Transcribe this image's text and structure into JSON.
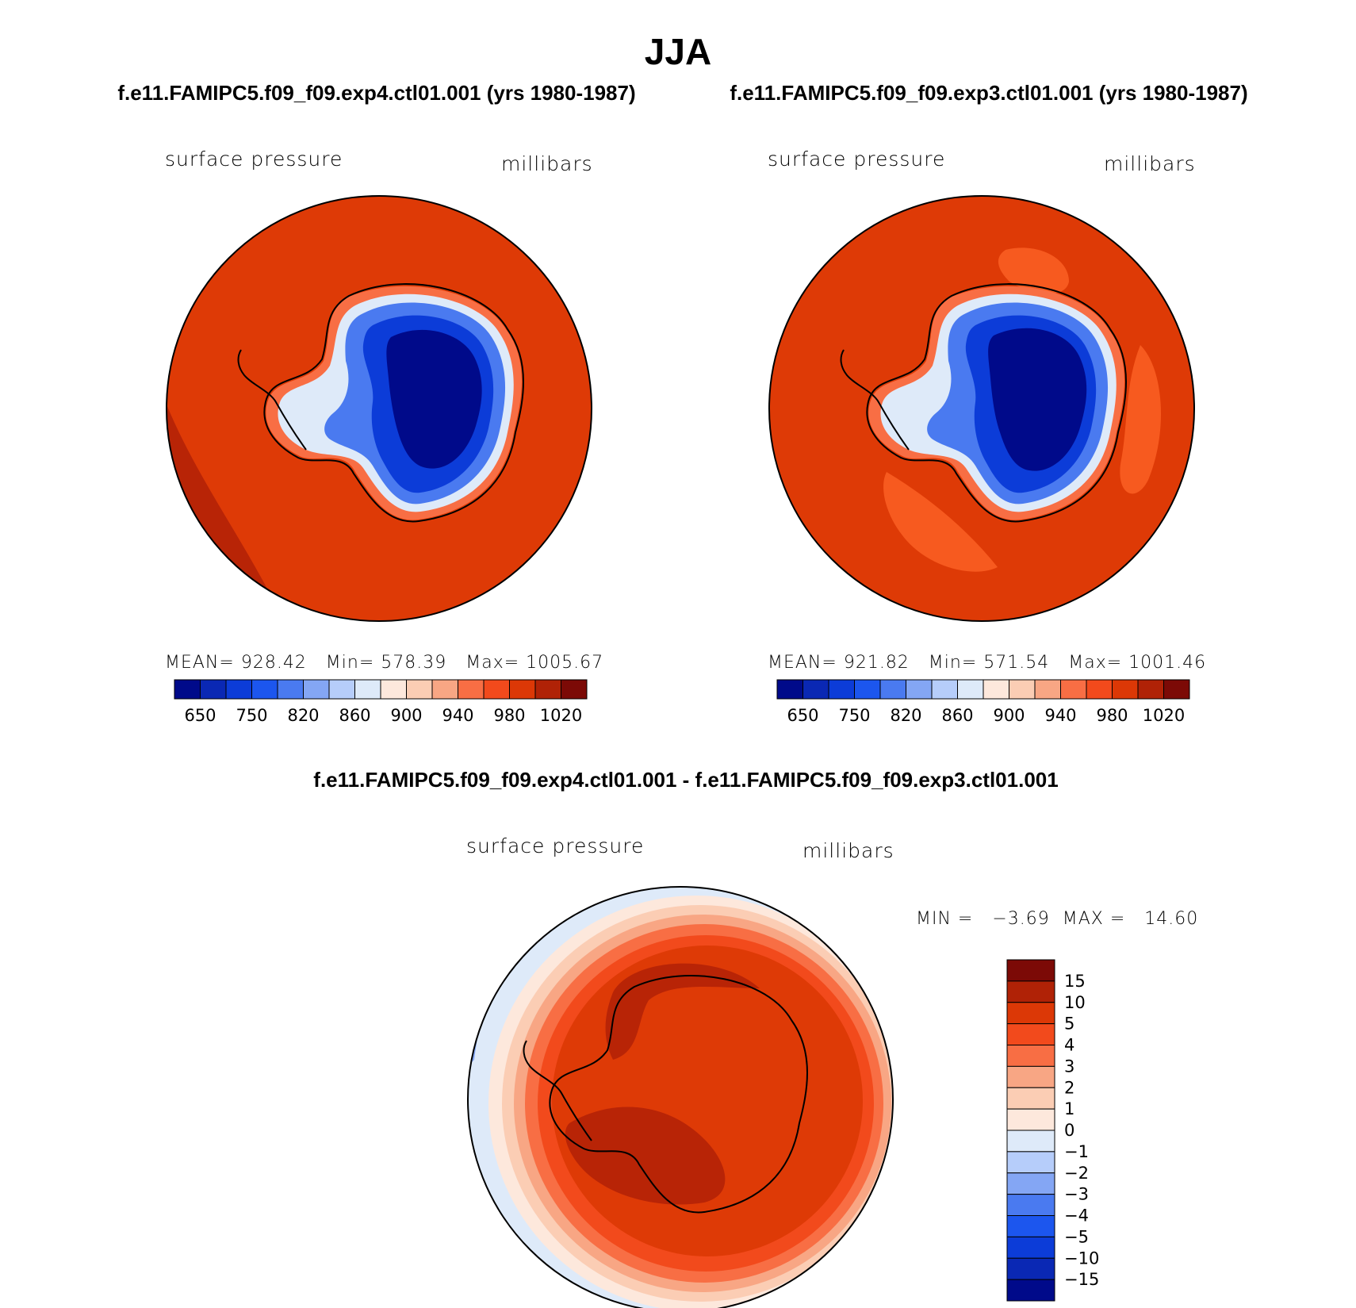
{
  "figure": {
    "season": "JJA",
    "panel_titles": {
      "left": "f.e11.FAMIPC5.f09_f09.exp4.ctl01.001 (yrs 1980-1987)",
      "right": "f.e11.FAMIPC5.f09_f09.exp3.ctl01.001 (yrs 1980-1987)",
      "diff": "f.e11.FAMIPC5.f09_f09.exp4.ctl01.001 - f.e11.FAMIPC5.f09_f09.exp3.ctl01.001"
    }
  },
  "variable": {
    "name": "surface pressure",
    "units": "millibars"
  },
  "panels": {
    "left": {
      "mean_label": "MEAN=",
      "mean": "928.42",
      "min_label": "Min=",
      "min": "578.39",
      "max_label": "Max=",
      "max": "1005.67"
    },
    "right": {
      "mean_label": "MEAN=",
      "mean": "921.82",
      "min_label": "Min=",
      "min": "571.54",
      "max_label": "Max=",
      "max": "1001.46"
    },
    "diff": {
      "min_label": "MIN =",
      "min": "−3.69",
      "max_label": "MAX =",
      "max": "14.60"
    }
  },
  "colors": {
    "field_main": "#de3a06",
    "field_dark": "#b82406",
    "field_light": "#f75a1f",
    "land_coast": "#000000"
  },
  "chart_data": [
    {
      "type": "heatmap",
      "projection": "south polar stereographic",
      "panel": "left",
      "legend": {
        "tick_labels": [
          "650",
          "750",
          "820",
          "860",
          "900",
          "940",
          "980",
          "1020"
        ],
        "colors": [
          "#000a8a",
          "#0a28b4",
          "#0c3cd8",
          "#1c56ee",
          "#4a7af0",
          "#84a6f4",
          "#b6cdfa",
          "#deeaf9",
          "#fde8dc",
          "#fbcdb4",
          "#f8a684",
          "#f86e44",
          "#f24a1c",
          "#dc3806",
          "#b02206",
          "#7c0a06"
        ]
      }
    },
    {
      "type": "heatmap",
      "projection": "south polar stereographic",
      "panel": "right",
      "legend": {
        "tick_labels": [
          "650",
          "750",
          "820",
          "860",
          "900",
          "940",
          "980",
          "1020"
        ],
        "colors": [
          "#000a8a",
          "#0a28b4",
          "#0c3cd8",
          "#1c56ee",
          "#4a7af0",
          "#84a6f4",
          "#b6cdfa",
          "#deeaf9",
          "#fde8dc",
          "#fbcdb4",
          "#f8a684",
          "#f86e44",
          "#f24a1c",
          "#dc3806",
          "#b02206",
          "#7c0a06"
        ]
      }
    },
    {
      "type": "heatmap",
      "projection": "south polar stereographic",
      "panel": "diff",
      "legend": {
        "tick_labels": [
          "15",
          "10",
          "5",
          "4",
          "3",
          "2",
          "1",
          "0",
          "−1",
          "−2",
          "−3",
          "−4",
          "−5",
          "−10",
          "−15"
        ],
        "colors": [
          "#7c0a06",
          "#b02206",
          "#dc3806",
          "#f24a1c",
          "#f86e44",
          "#f8a684",
          "#fbcdb4",
          "#fde8dc",
          "#deeaf9",
          "#b6cdfa",
          "#84a6f4",
          "#4a7af0",
          "#1c56ee",
          "#0c3cd8",
          "#0a28b4",
          "#000a8a"
        ]
      }
    }
  ]
}
